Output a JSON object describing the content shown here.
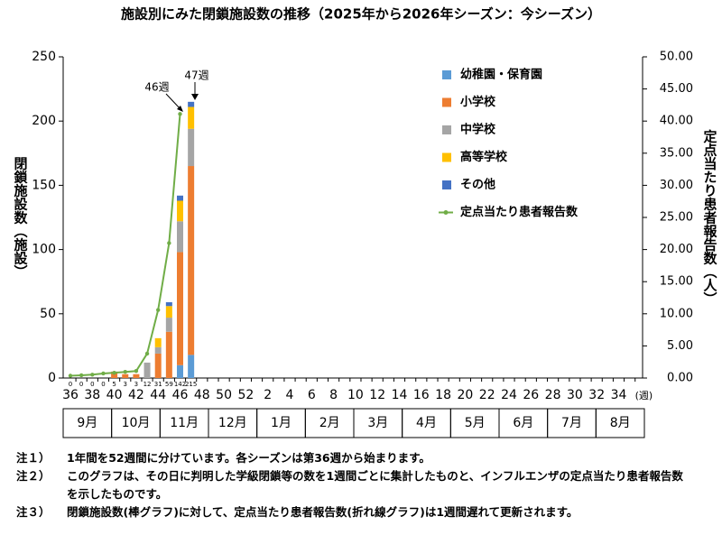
{
  "chart_data": {
    "type": "bar",
    "title": "施設別にみた閉鎖施設数の推移（2025年から2026年シーズン：今シーズン）",
    "y_label": "閉鎖施設数（施設）",
    "y2_label": "定点当たり患者報告数（人）",
    "x_unit": "(週)",
    "categories": [
      36,
      null,
      38,
      null,
      40,
      null,
      42,
      null,
      44,
      null,
      46,
      null,
      48,
      null,
      50,
      null,
      52,
      null,
      2,
      null,
      4,
      null,
      6,
      null,
      8,
      null,
      10,
      null,
      12,
      null,
      14,
      null,
      16,
      null,
      18,
      null,
      20,
      null,
      22,
      null,
      24,
      null,
      26,
      null,
      28,
      null,
      30,
      null,
      32,
      null,
      34,
      null
    ],
    "months": [
      "9月",
      "10月",
      "11月",
      "12月",
      "1月",
      "2月",
      "3月",
      "4月",
      "5月",
      "6月",
      "7月",
      "8月"
    ],
    "totals": [
      0,
      0,
      0,
      0,
      5,
      3,
      3,
      12,
      31,
      59,
      142,
      215
    ],
    "series": [
      {
        "name": "幼稚園・保育園",
        "color": "#5b9bd5",
        "values": [
          0,
          0,
          0,
          0,
          0,
          0,
          0,
          0,
          0,
          0,
          10,
          18,
          null,
          null,
          null,
          null,
          null,
          null,
          null,
          null,
          null,
          null,
          null,
          null,
          null,
          null,
          null,
          null,
          null,
          null,
          null,
          null,
          null,
          null,
          null,
          null,
          null,
          null,
          null,
          null,
          null,
          null,
          null,
          null,
          null,
          null,
          null,
          null,
          null,
          null,
          null,
          null
        ]
      },
      {
        "name": "小学校",
        "color": "#ed7d31",
        "values": [
          0,
          0,
          0,
          0,
          5,
          3,
          3,
          0,
          19,
          36,
          88,
          147,
          null,
          null,
          null,
          null,
          null,
          null,
          null,
          null,
          null,
          null,
          null,
          null,
          null,
          null,
          null,
          null,
          null,
          null,
          null,
          null,
          null,
          null,
          null,
          null,
          null,
          null,
          null,
          null,
          null,
          null,
          null,
          null,
          null,
          null,
          null,
          null,
          null,
          null,
          null,
          null
        ]
      },
      {
        "name": "中学校",
        "color": "#a5a5a5",
        "values": [
          0,
          0,
          0,
          0,
          0,
          0,
          0,
          12,
          5,
          11,
          24,
          29,
          null,
          null,
          null,
          null,
          null,
          null,
          null,
          null,
          null,
          null,
          null,
          null,
          null,
          null,
          null,
          null,
          null,
          null,
          null,
          null,
          null,
          null,
          null,
          null,
          null,
          null,
          null,
          null,
          null,
          null,
          null,
          null,
          null,
          null,
          null,
          null,
          null,
          null,
          null,
          null
        ]
      },
      {
        "name": "高等学校",
        "color": "#ffc000",
        "values": [
          0,
          0,
          0,
          0,
          0,
          0,
          0,
          0,
          7,
          9,
          16,
          17,
          null,
          null,
          null,
          null,
          null,
          null,
          null,
          null,
          null,
          null,
          null,
          null,
          null,
          null,
          null,
          null,
          null,
          null,
          null,
          null,
          null,
          null,
          null,
          null,
          null,
          null,
          null,
          null,
          null,
          null,
          null,
          null,
          null,
          null,
          null,
          null,
          null,
          null,
          null,
          null
        ]
      },
      {
        "name": "その他",
        "color": "#4472c4",
        "values": [
          0,
          0,
          0,
          0,
          0,
          0,
          0,
          0,
          0,
          3,
          4,
          4,
          null,
          null,
          null,
          null,
          null,
          null,
          null,
          null,
          null,
          null,
          null,
          null,
          null,
          null,
          null,
          null,
          null,
          null,
          null,
          null,
          null,
          null,
          null,
          null,
          null,
          null,
          null,
          null,
          null,
          null,
          null,
          null,
          null,
          null,
          null,
          null,
          null,
          null,
          null,
          null
        ]
      },
      {
        "name": "定点当たり患者報告数",
        "color": "#70ad47",
        "type": "line",
        "axis": "y2",
        "values": [
          0.36,
          0.43,
          0.52,
          0.71,
          0.82,
          0.95,
          1.09,
          3.8,
          10.6,
          21.0,
          41.1,
          null,
          null,
          null,
          null,
          null,
          null,
          null,
          null,
          null,
          null,
          null,
          null,
          null,
          null,
          null,
          null,
          null,
          null,
          null,
          null,
          null,
          null,
          null,
          null,
          null,
          null,
          null,
          null,
          null,
          null,
          null,
          null,
          null,
          null,
          null,
          null,
          null,
          null,
          null,
          null,
          null
        ]
      }
    ],
    "annotations": [
      {
        "text": "46週"
      },
      {
        "text": "47週"
      }
    ],
    "ylim": [
      0,
      250
    ],
    "yticks": [
      0,
      50,
      100,
      150,
      200,
      250
    ],
    "y2lim": [
      0,
      50
    ],
    "y2ticks": [
      {
        "value": 0,
        "label": "0.00"
      },
      {
        "value": 5,
        "label": "5.00"
      },
      {
        "value": 10,
        "label": "10.00"
      },
      {
        "value": 15,
        "label": "15.00"
      },
      {
        "value": 20,
        "label": "20.00"
      },
      {
        "value": 25,
        "label": "25.00"
      },
      {
        "value": 30,
        "label": "30.00"
      },
      {
        "value": 35,
        "label": "35.00"
      },
      {
        "value": 40,
        "label": "40.00"
      },
      {
        "value": 45,
        "label": "45.00"
      },
      {
        "value": 50,
        "label": "50.00"
      }
    ],
    "legend": "upper right"
  },
  "notes": [
    {
      "label": "注１）",
      "text": "1年間を52週間に分けています。各シーズンは第36週から始まります。"
    },
    {
      "label": "注２）",
      "text": "このグラフは、その日に判明した学級閉鎖等の数を1週間ごとに集計したものと、インフルエンザの定点当たり患者報告数を示したものです。"
    },
    {
      "label": "注３）",
      "text": "閉鎖施設数(棒グラフ)に対して、定点当たり患者報告数(折れ線グラフ)は1週間遅れて更新されます。"
    }
  ]
}
